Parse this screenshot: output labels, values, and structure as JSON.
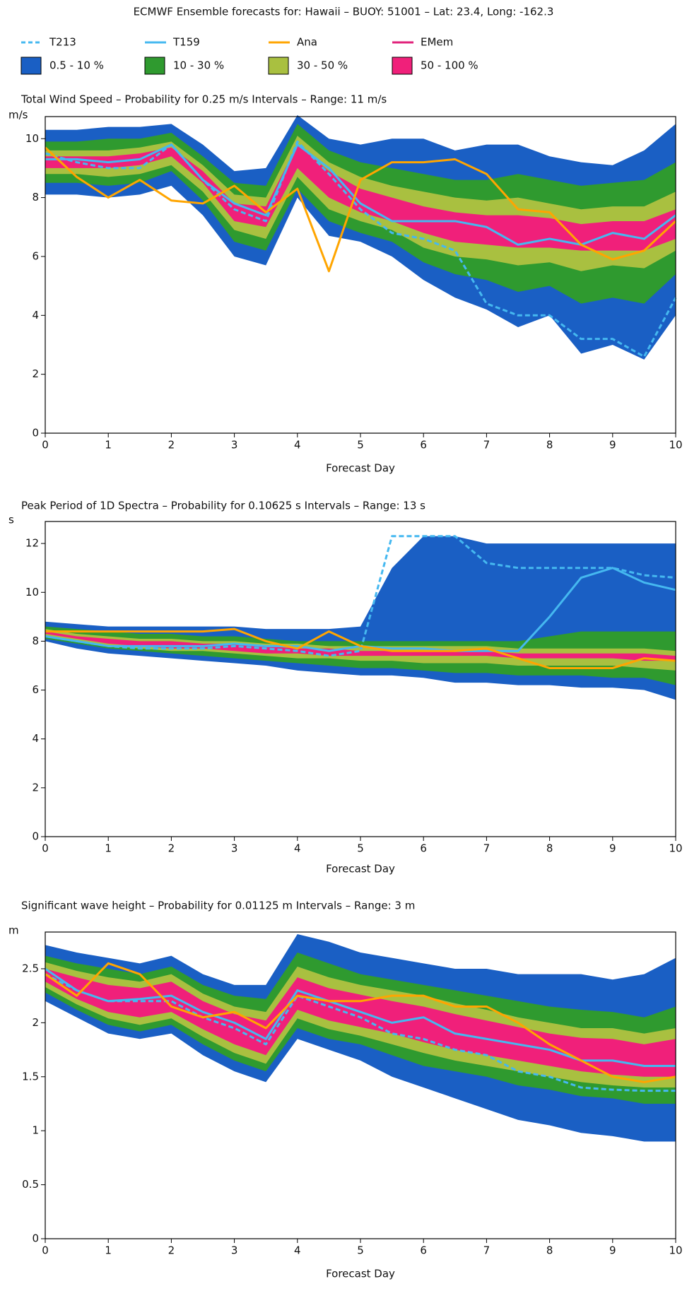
{
  "header": {
    "title": "ECMWF Ensemble forecasts for:  Hawaii – BUOY: 51001 – Lat: 23.4, Long: -162.3"
  },
  "legend": {
    "lines": [
      {
        "name": "T213",
        "color": "#45b8f0",
        "dash": true
      },
      {
        "name": "T159",
        "color": "#45b8f0",
        "dash": false
      },
      {
        "name": "Ana",
        "color": "#ffa500",
        "dash": false
      },
      {
        "name": "EMem",
        "color": "#e0207a",
        "dash": false
      }
    ],
    "bands": [
      {
        "name": "0.5 - 10 %",
        "color": "#1a5fc4"
      },
      {
        "name": "10 - 30 %",
        "color": "#2f9a2f"
      },
      {
        "name": "30 - 50 %",
        "color": "#a9c040"
      },
      {
        "name": "50 - 100 %",
        "color": "#f0207a"
      }
    ]
  },
  "chart_data": [
    {
      "type": "line",
      "title": "Total Wind Speed – Probability for 0.25 m/s Intervals – Range: 11 m/s",
      "y_unit": "m/s",
      "x_label": "Forecast Day",
      "x": [
        0,
        0.5,
        1,
        1.5,
        2,
        2.5,
        3,
        3.5,
        4,
        4.5,
        5,
        5.5,
        6,
        6.5,
        7,
        7.5,
        8,
        8.5,
        9,
        9.5,
        10
      ],
      "xlim": [
        0,
        10
      ],
      "xticks": [
        0,
        1,
        2,
        3,
        4,
        5,
        6,
        7,
        8,
        9,
        10
      ],
      "ylim": [
        0,
        10.75
      ],
      "yticks": [
        0,
        2,
        4,
        6,
        8,
        10
      ],
      "bands": [
        {
          "low": [
            8.1,
            8.1,
            8.0,
            8.1,
            8.4,
            7.4,
            6.0,
            5.7,
            8.0,
            6.7,
            6.5,
            6.0,
            5.2,
            4.6,
            4.2,
            3.6,
            4.0,
            2.7,
            3.0,
            2.5,
            4.0
          ],
          "high": [
            10.3,
            10.3,
            10.4,
            10.4,
            10.5,
            9.8,
            8.9,
            9.0,
            10.8,
            10.0,
            9.8,
            10.0,
            10.0,
            9.6,
            9.8,
            9.8,
            9.4,
            9.2,
            9.1,
            9.6,
            10.5
          ]
        },
        {
          "low": [
            8.5,
            8.5,
            8.4,
            8.5,
            8.9,
            7.9,
            6.5,
            6.2,
            8.3,
            7.2,
            6.8,
            6.5,
            5.8,
            5.4,
            5.2,
            4.8,
            5.0,
            4.4,
            4.6,
            4.4,
            5.4
          ],
          "high": [
            9.9,
            9.9,
            10.0,
            10.0,
            10.2,
            9.4,
            8.5,
            8.4,
            10.5,
            9.6,
            9.2,
            9.0,
            8.8,
            8.6,
            8.6,
            8.8,
            8.6,
            8.4,
            8.5,
            8.6,
            9.2
          ]
        },
        {
          "low": [
            8.8,
            8.8,
            8.7,
            8.8,
            9.1,
            8.2,
            6.9,
            6.6,
            8.7,
            7.6,
            7.2,
            6.9,
            6.3,
            6.0,
            5.9,
            5.7,
            5.8,
            5.5,
            5.7,
            5.6,
            6.2
          ],
          "high": [
            9.6,
            9.6,
            9.6,
            9.7,
            9.9,
            9.1,
            8.1,
            8.0,
            10.1,
            9.2,
            8.7,
            8.4,
            8.2,
            8.0,
            7.9,
            8.0,
            7.8,
            7.6,
            7.7,
            7.7,
            8.2
          ]
        },
        {
          "low": [
            9.0,
            9.0,
            9.0,
            9.1,
            9.4,
            8.5,
            7.2,
            7.0,
            9.0,
            8.0,
            7.5,
            7.2,
            6.8,
            6.5,
            6.4,
            6.3,
            6.3,
            6.2,
            6.2,
            6.2,
            6.6
          ],
          "high": [
            9.4,
            9.4,
            9.4,
            9.5,
            9.7,
            8.9,
            7.8,
            7.7,
            9.8,
            8.9,
            8.3,
            8.0,
            7.7,
            7.5,
            7.4,
            7.4,
            7.3,
            7.1,
            7.2,
            7.2,
            7.6
          ]
        }
      ],
      "series": [
        {
          "values": [
            9.5,
            9.2,
            9.0,
            9.0,
            9.8,
            8.6,
            7.6,
            7.2,
            9.9,
            8.8,
            7.6,
            6.8,
            6.6,
            6.2,
            4.4,
            4.0,
            4.0,
            3.2,
            3.2,
            2.6,
            4.6
          ]
        },
        {
          "values": [
            9.3,
            9.3,
            9.2,
            9.3,
            9.8,
            8.6,
            7.8,
            7.4,
            9.8,
            9.0,
            7.8,
            7.2,
            7.2,
            7.2,
            7.0,
            6.4,
            6.6,
            6.4,
            6.8,
            6.6,
            7.4
          ]
        },
        {
          "values": [
            9.7,
            8.7,
            8.0,
            8.6,
            7.9,
            7.8,
            8.4,
            7.5,
            8.3,
            5.5,
            8.6,
            9.2,
            9.2,
            9.3,
            8.8,
            7.6,
            7.5,
            6.4,
            5.9,
            6.2,
            7.2
          ]
        }
      ]
    },
    {
      "type": "line",
      "title": "Peak Period of 1D Spectra – Probability for 0.10625 s Intervals – Range: 13 s",
      "y_unit": "s",
      "x_label": "Forecast Day",
      "x": [
        0,
        0.5,
        1,
        1.5,
        2,
        2.5,
        3,
        3.5,
        4,
        4.5,
        5,
        5.5,
        6,
        6.5,
        7,
        7.5,
        8,
        8.5,
        9,
        9.5,
        10
      ],
      "xlim": [
        0,
        10
      ],
      "xticks": [
        0,
        1,
        2,
        3,
        4,
        5,
        6,
        7,
        8,
        9,
        10
      ],
      "ylim": [
        0,
        12.9
      ],
      "yticks": [
        0,
        2,
        4,
        6,
        8,
        10,
        12
      ],
      "bands": [
        {
          "low": [
            8.0,
            7.7,
            7.5,
            7.4,
            7.3,
            7.2,
            7.1,
            7.0,
            6.8,
            6.7,
            6.6,
            6.6,
            6.5,
            6.3,
            6.3,
            6.2,
            6.2,
            6.1,
            6.1,
            6.0,
            5.6
          ],
          "high": [
            8.8,
            8.7,
            8.6,
            8.6,
            8.6,
            8.6,
            8.6,
            8.5,
            8.5,
            8.5,
            8.6,
            11.0,
            12.3,
            12.3,
            12.0,
            12.0,
            12.0,
            12.0,
            12.0,
            12.0,
            12.0
          ]
        },
        {
          "low": [
            8.1,
            7.9,
            7.7,
            7.6,
            7.5,
            7.4,
            7.3,
            7.2,
            7.1,
            7.0,
            6.9,
            6.9,
            6.8,
            6.7,
            6.7,
            6.6,
            6.6,
            6.6,
            6.5,
            6.5,
            6.2
          ],
          "high": [
            8.6,
            8.5,
            8.4,
            8.3,
            8.3,
            8.2,
            8.2,
            8.1,
            8.0,
            8.0,
            8.0,
            8.0,
            8.0,
            8.0,
            8.0,
            8.0,
            8.2,
            8.4,
            8.4,
            8.4,
            8.4
          ]
        },
        {
          "low": [
            8.2,
            8.0,
            7.8,
            7.7,
            7.6,
            7.6,
            7.5,
            7.4,
            7.3,
            7.3,
            7.2,
            7.2,
            7.1,
            7.1,
            7.1,
            7.0,
            7.0,
            7.0,
            7.0,
            6.9,
            6.8
          ],
          "high": [
            8.5,
            8.3,
            8.2,
            8.1,
            8.1,
            8.0,
            8.0,
            7.9,
            7.9,
            7.8,
            7.8,
            7.8,
            7.8,
            7.8,
            7.8,
            7.7,
            7.7,
            7.7,
            7.7,
            7.7,
            7.6
          ]
        },
        {
          "low": [
            8.3,
            8.1,
            7.9,
            7.8,
            7.7,
            7.7,
            7.6,
            7.5,
            7.5,
            7.4,
            7.4,
            7.4,
            7.4,
            7.4,
            7.4,
            7.3,
            7.3,
            7.3,
            7.3,
            7.2,
            7.2
          ],
          "high": [
            8.4,
            8.2,
            8.1,
            8.0,
            8.0,
            7.9,
            7.9,
            7.8,
            7.7,
            7.7,
            7.6,
            7.6,
            7.6,
            7.6,
            7.6,
            7.5,
            7.5,
            7.5,
            7.5,
            7.5,
            7.4
          ]
        }
      ],
      "series": [
        {
          "values": [
            8.2,
            8.0,
            7.8,
            7.7,
            7.7,
            7.7,
            7.8,
            7.7,
            7.6,
            7.4,
            7.6,
            12.3,
            12.3,
            12.3,
            11.2,
            11.0,
            11.0,
            11.0,
            11.0,
            10.7,
            10.6
          ]
        },
        {
          "values": [
            8.2,
            8.0,
            7.8,
            7.8,
            7.8,
            7.8,
            7.9,
            7.8,
            7.8,
            7.6,
            7.8,
            7.7,
            7.7,
            7.6,
            7.6,
            7.6,
            9.0,
            10.6,
            11.0,
            10.4,
            10.1
          ]
        },
        {
          "values": [
            8.4,
            8.4,
            8.4,
            8.4,
            8.4,
            8.4,
            8.5,
            8.0,
            7.7,
            8.4,
            7.8,
            7.6,
            7.6,
            7.6,
            7.7,
            7.3,
            6.9,
            6.9,
            6.9,
            7.3,
            7.2
          ]
        }
      ]
    },
    {
      "type": "line",
      "title": "Significant wave height  – Probability for 0.01125 m Intervals – Range: 3 m",
      "y_unit": "m",
      "x_label": "Forecast Day",
      "x": [
        0,
        0.5,
        1,
        1.5,
        2,
        2.5,
        3,
        3.5,
        4,
        4.5,
        5,
        5.5,
        6,
        6.5,
        7,
        7.5,
        8,
        8.5,
        9,
        9.5,
        10
      ],
      "xlim": [
        0,
        10
      ],
      "xticks": [
        0,
        1,
        2,
        3,
        4,
        5,
        6,
        7,
        8,
        9,
        10
      ],
      "ylim": [
        0,
        2.84
      ],
      "yticks": [
        0,
        0.5,
        1,
        1.5,
        2,
        2.5
      ],
      "bands": [
        {
          "low": [
            2.2,
            2.05,
            1.9,
            1.85,
            1.9,
            1.7,
            1.55,
            1.45,
            1.85,
            1.75,
            1.65,
            1.5,
            1.4,
            1.3,
            1.2,
            1.1,
            1.05,
            0.98,
            0.95,
            0.9,
            0.9
          ],
          "high": [
            2.72,
            2.65,
            2.6,
            2.55,
            2.62,
            2.45,
            2.35,
            2.35,
            2.82,
            2.75,
            2.65,
            2.6,
            2.55,
            2.5,
            2.5,
            2.45,
            2.45,
            2.45,
            2.4,
            2.45,
            2.6
          ]
        },
        {
          "low": [
            2.28,
            2.12,
            1.98,
            1.92,
            1.98,
            1.8,
            1.65,
            1.55,
            1.95,
            1.85,
            1.8,
            1.7,
            1.6,
            1.55,
            1.5,
            1.42,
            1.38,
            1.32,
            1.3,
            1.25,
            1.25
          ],
          "high": [
            2.62,
            2.55,
            2.5,
            2.45,
            2.52,
            2.35,
            2.25,
            2.22,
            2.65,
            2.55,
            2.45,
            2.4,
            2.35,
            2.3,
            2.25,
            2.2,
            2.15,
            2.12,
            2.1,
            2.05,
            2.15
          ]
        },
        {
          "low": [
            2.33,
            2.17,
            2.04,
            1.98,
            2.04,
            1.87,
            1.72,
            1.62,
            2.04,
            1.94,
            1.88,
            1.8,
            1.72,
            1.65,
            1.6,
            1.55,
            1.5,
            1.45,
            1.42,
            1.4,
            1.4
          ],
          "high": [
            2.56,
            2.48,
            2.42,
            2.38,
            2.45,
            2.27,
            2.15,
            2.1,
            2.52,
            2.42,
            2.35,
            2.3,
            2.25,
            2.18,
            2.12,
            2.05,
            2.0,
            1.95,
            1.95,
            1.9,
            1.95
          ]
        },
        {
          "low": [
            2.38,
            2.22,
            2.1,
            2.05,
            2.1,
            1.94,
            1.8,
            1.7,
            2.12,
            2.02,
            1.96,
            1.9,
            1.82,
            1.75,
            1.7,
            1.65,
            1.6,
            1.55,
            1.52,
            1.5,
            1.5
          ],
          "high": [
            2.5,
            2.42,
            2.35,
            2.32,
            2.38,
            2.2,
            2.08,
            2.02,
            2.42,
            2.32,
            2.26,
            2.2,
            2.15,
            2.08,
            2.02,
            1.96,
            1.9,
            1.86,
            1.85,
            1.8,
            1.85
          ]
        }
      ],
      "series": [
        {
          "values": [
            2.45,
            2.3,
            2.2,
            2.2,
            2.2,
            2.05,
            1.95,
            1.8,
            2.25,
            2.15,
            2.05,
            1.9,
            1.85,
            1.75,
            1.7,
            1.55,
            1.5,
            1.4,
            1.38,
            1.37,
            1.37
          ]
        },
        {
          "values": [
            2.5,
            2.3,
            2.2,
            2.22,
            2.25,
            2.1,
            2.0,
            1.85,
            2.3,
            2.2,
            2.1,
            2.0,
            2.05,
            1.9,
            1.85,
            1.8,
            1.75,
            1.65,
            1.65,
            1.6,
            1.6
          ]
        },
        {
          "values": [
            2.45,
            2.25,
            2.55,
            2.45,
            2.15,
            2.05,
            2.1,
            1.95,
            2.25,
            2.2,
            2.2,
            2.25,
            2.25,
            2.15,
            2.15,
            2.0,
            1.8,
            1.65,
            1.5,
            1.45,
            1.5
          ]
        }
      ]
    }
  ]
}
